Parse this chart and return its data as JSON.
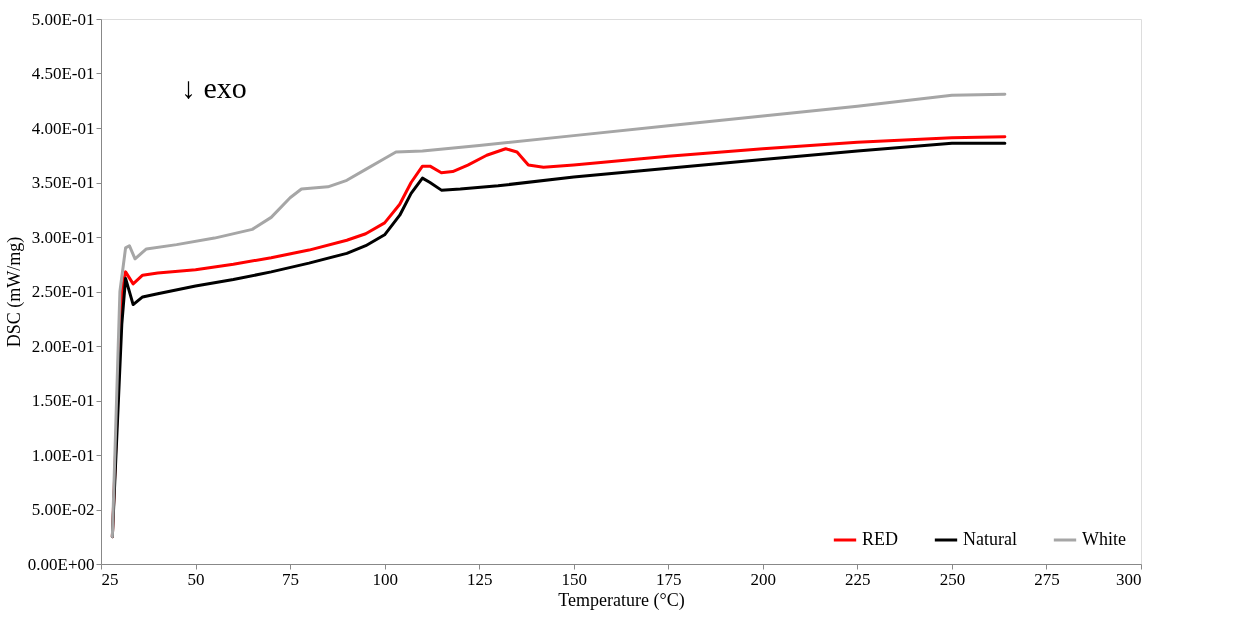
{
  "chart_data": {
    "type": "line",
    "xlabel": "Temperature (°C)",
    "ylabel": "DSC (mW/mg)",
    "annotations": [
      "↓ exo"
    ],
    "xlim": [
      25,
      300
    ],
    "xticks": [
      25,
      50,
      75,
      100,
      125,
      150,
      175,
      200,
      225,
      250,
      275,
      300
    ],
    "ylim": [
      0,
      0.5
    ],
    "yticks": [
      {
        "value": 0,
        "label": "0.00E+00"
      },
      {
        "value": 0.05,
        "label": "5.00E-02"
      },
      {
        "value": 0.1,
        "label": "1.00E-01"
      },
      {
        "value": 0.15,
        "label": "1.50E-01"
      },
      {
        "value": 0.2,
        "label": "2.00E-01"
      },
      {
        "value": 0.25,
        "label": "2.50E-01"
      },
      {
        "value": 0.3,
        "label": "3.00E-01"
      },
      {
        "value": 0.35,
        "label": "3.50E-01"
      },
      {
        "value": 0.4,
        "label": "4.00E-01"
      },
      {
        "value": 0.45,
        "label": "4.50E-01"
      },
      {
        "value": 0.5,
        "label": "5.00E-01"
      }
    ],
    "grid": false,
    "legend": "bottom right",
    "marker": "none",
    "line_style": "solid",
    "series": [
      {
        "name": "RED",
        "color": "#ff0000",
        "x": [
          28,
          30.5,
          31.5,
          33.5,
          36,
          40,
          50,
          60,
          70,
          80,
          90,
          95,
          100,
          104,
          107,
          110,
          112,
          115,
          118,
          122,
          127,
          132,
          135,
          138,
          142,
          150,
          175,
          200,
          225,
          250,
          264
        ],
        "values": [
          0.025,
          0.25,
          0.268,
          0.257,
          0.265,
          0.267,
          0.27,
          0.275,
          0.281,
          0.288,
          0.297,
          0.303,
          0.313,
          0.33,
          0.35,
          0.365,
          0.365,
          0.359,
          0.36,
          0.366,
          0.375,
          0.381,
          0.378,
          0.366,
          0.364,
          0.366,
          0.374,
          0.381,
          0.387,
          0.391,
          0.392
        ]
      },
      {
        "name": "Natural",
        "color": "#000000",
        "x": [
          28,
          30.5,
          31.5,
          33.5,
          36,
          40,
          50,
          60,
          70,
          80,
          90,
          95,
          100,
          104,
          107,
          110,
          112,
          115,
          120,
          130,
          150,
          175,
          200,
          225,
          250,
          264
        ],
        "values": [
          0.025,
          0.22,
          0.262,
          0.238,
          0.245,
          0.248,
          0.255,
          0.261,
          0.268,
          0.276,
          0.285,
          0.292,
          0.302,
          0.32,
          0.34,
          0.354,
          0.35,
          0.343,
          0.344,
          0.347,
          0.355,
          0.363,
          0.371,
          0.379,
          0.386,
          0.386
        ]
      },
      {
        "name": "White",
        "color": "#a6a6a6",
        "x": [
          28,
          30,
          31.5,
          32.5,
          34,
          37,
          45,
          55,
          65,
          70,
          75,
          78,
          85,
          90,
          95,
          100,
          103,
          110,
          125,
          150,
          175,
          200,
          225,
          250,
          264
        ],
        "values": [
          0.025,
          0.25,
          0.29,
          0.292,
          0.28,
          0.289,
          0.293,
          0.299,
          0.307,
          0.318,
          0.336,
          0.344,
          0.346,
          0.352,
          0.362,
          0.372,
          0.378,
          0.379,
          0.384,
          0.393,
          0.402,
          0.411,
          0.42,
          0.43,
          0.431
        ]
      }
    ]
  }
}
